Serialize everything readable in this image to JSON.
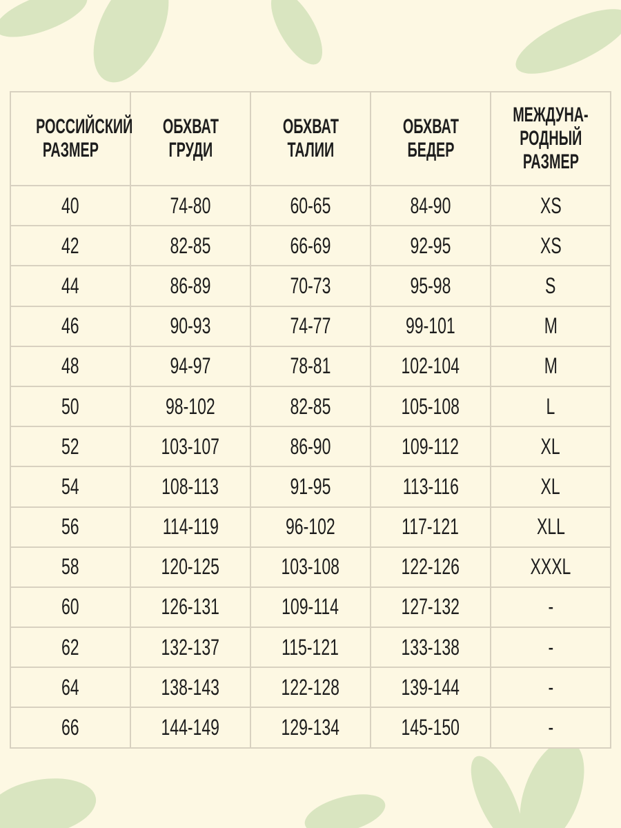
{
  "table": {
    "header": [
      [
        "РОССИЙСКИЙ",
        "РАЗМЕР"
      ],
      [
        "ОБХВАТ",
        "ГРУДИ"
      ],
      [
        "ОБХВАТ",
        "ТАЛИИ"
      ],
      [
        "ОБХВАТ",
        "БЕДЕР"
      ],
      [
        "МЕЖДУНА-",
        "РОДНЫЙ",
        "РАЗМЕР"
      ]
    ],
    "rows": [
      [
        "40",
        "74-80",
        "60-65",
        "84-90",
        "XS"
      ],
      [
        "42",
        "82-85",
        "66-69",
        "92-95",
        "XS"
      ],
      [
        "44",
        "86-89",
        "70-73",
        "95-98",
        "S"
      ],
      [
        "46",
        "90-93",
        "74-77",
        "99-101",
        "M"
      ],
      [
        "48",
        "94-97",
        "78-81",
        "102-104",
        "M"
      ],
      [
        "50",
        "98-102",
        "82-85",
        "105-108",
        "L"
      ],
      [
        "52",
        "103-107",
        "86-90",
        "109-112",
        "XL"
      ],
      [
        "54",
        "108-113",
        "91-95",
        "113-116",
        "XL"
      ],
      [
        "56",
        "114-119",
        "96-102",
        "117-121",
        "XLL"
      ],
      [
        "58",
        "120-125",
        "103-108",
        "122-126",
        "XXXL"
      ],
      [
        "60",
        "126-131",
        "109-114",
        "127-132",
        "-"
      ],
      [
        "62",
        "132-137",
        "115-121",
        "133-138",
        "-"
      ],
      [
        "64",
        "138-143",
        "122-128",
        "139-144",
        "-"
      ],
      [
        "66",
        "144-149",
        "129-134",
        "145-150",
        "-"
      ]
    ]
  }
}
